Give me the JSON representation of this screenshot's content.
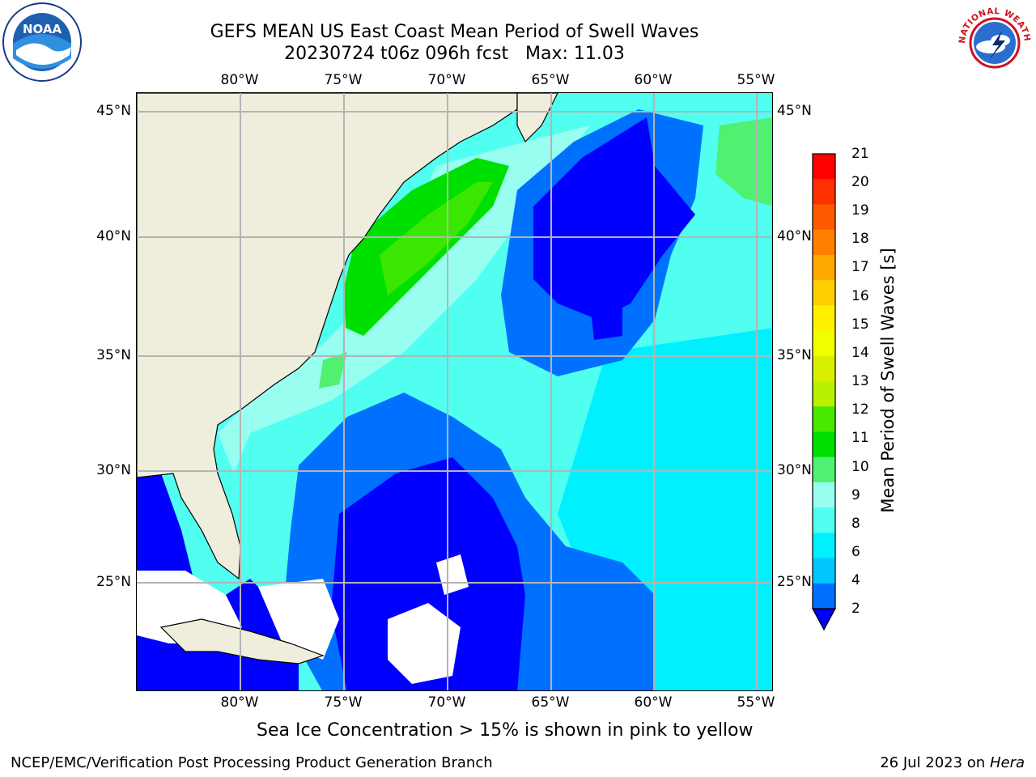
{
  "title": {
    "line1": "GEFS MEAN US East Coast Mean Period of Swell Waves",
    "line2": "20230724 t06z 096h fcst   Max: 11.03"
  },
  "map": {
    "lon_labels": [
      "80°W",
      "75°W",
      "70°W",
      "65°W",
      "60°W",
      "55°W"
    ],
    "lat_labels": [
      "45°N",
      "40°N",
      "35°N",
      "30°N",
      "25°N"
    ],
    "land_color": "#efeddc",
    "grid_color": "#b4b4b4"
  },
  "colorbar": {
    "label": "Mean Period of Swell Waves [s]",
    "ticks": [
      "21",
      "20",
      "19",
      "18",
      "17",
      "16",
      "15",
      "14",
      "13",
      "12",
      "11",
      "10",
      "9",
      "8",
      "6",
      "4",
      "2"
    ],
    "colors": [
      "#ff0000",
      "#ff3000",
      "#ff5a00",
      "#ff8000",
      "#ffa800",
      "#ffd000",
      "#fff000",
      "#f0ff00",
      "#d8f000",
      "#b8f000",
      "#48e800",
      "#00e000",
      "#50f070",
      "#98fff0",
      "#50fff0",
      "#00f0ff",
      "#00c8ff",
      "#0070ff",
      "#0000ff"
    ],
    "extend_color": "#0000ff"
  },
  "footnote": "Sea Ice Concentration > 15% is shown in pink to yellow",
  "credit": "NCEP/EMC/Verification Post Processing Product Generation Branch",
  "run_date": {
    "date": "26 Jul 2023 on ",
    "host": "Hera"
  },
  "logos": {
    "left": {
      "icon": "noaa-logo-icon",
      "text": "NOAA"
    },
    "right": {
      "icon": "nws-logo-icon",
      "text": "NATIONAL WEATHER SERVICE"
    }
  }
}
